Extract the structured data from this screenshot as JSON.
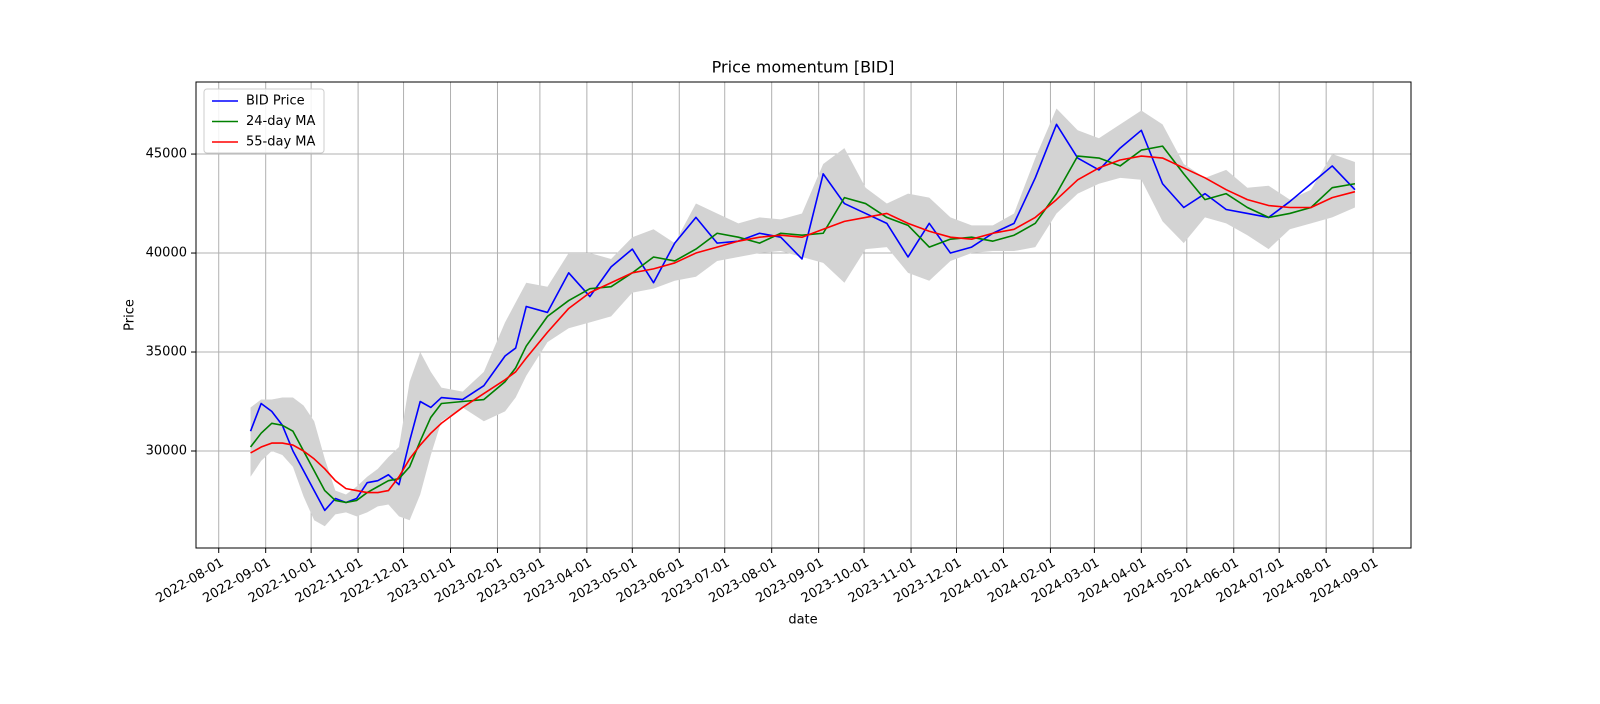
{
  "chart_data": {
    "type": "line",
    "title": "Price momentum [BID]",
    "xlabel": "date",
    "ylabel": "Price",
    "x": [
      "2022-08-22",
      "2022-08-29",
      "2022-09-05",
      "2022-09-12",
      "2022-09-19",
      "2022-09-26",
      "2022-10-03",
      "2022-10-10",
      "2022-10-17",
      "2022-10-24",
      "2022-10-31",
      "2022-11-07",
      "2022-11-14",
      "2022-11-21",
      "2022-11-28",
      "2022-12-05",
      "2022-12-12",
      "2022-12-19",
      "2022-12-26",
      "2023-01-09",
      "2023-01-23",
      "2023-02-06",
      "2023-02-13",
      "2023-02-20",
      "2023-03-06",
      "2023-03-20",
      "2023-04-03",
      "2023-04-17",
      "2023-05-01",
      "2023-05-15",
      "2023-05-29",
      "2023-06-12",
      "2023-06-26",
      "2023-07-10",
      "2023-07-24",
      "2023-08-07",
      "2023-08-21",
      "2023-09-04",
      "2023-09-18",
      "2023-10-02",
      "2023-10-16",
      "2023-10-30",
      "2023-11-13",
      "2023-11-27",
      "2023-12-11",
      "2023-12-25",
      "2024-01-08",
      "2024-01-22",
      "2024-02-05",
      "2024-02-19",
      "2024-03-04",
      "2024-03-18",
      "2024-04-01",
      "2024-04-15",
      "2024-04-29",
      "2024-05-13",
      "2024-05-27",
      "2024-06-10",
      "2024-06-24",
      "2024-07-08",
      "2024-07-22",
      "2024-08-05",
      "2024-08-20"
    ],
    "series": [
      {
        "name": "BID Price",
        "color": "blue",
        "values": [
          31000,
          32400,
          32000,
          31300,
          30000,
          29000,
          28000,
          27000,
          27600,
          27400,
          27600,
          28400,
          28500,
          28800,
          28300,
          30500,
          32500,
          32200,
          32700,
          32600,
          33300,
          34800,
          35200,
          37300,
          37000,
          39000,
          37800,
          39300,
          40200,
          38500,
          40500,
          41800,
          40500,
          40600,
          41000,
          40800,
          39700,
          44000,
          42500,
          42000,
          41500,
          39800,
          41500,
          40000,
          40300,
          41000,
          41500,
          43800,
          46500,
          44800,
          44200,
          45300,
          46200,
          43500,
          42300,
          43000,
          42200,
          42000,
          41800,
          42600,
          43500,
          44400,
          43200
        ]
      },
      {
        "name": "24-day MA",
        "color": "green",
        "values": [
          30200,
          30900,
          31400,
          31300,
          31000,
          30000,
          29000,
          28000,
          27500,
          27400,
          27500,
          27900,
          28200,
          28500,
          28600,
          29200,
          30500,
          31700,
          32400,
          32500,
          32600,
          33500,
          34200,
          35300,
          36800,
          37600,
          38200,
          38300,
          39000,
          39800,
          39600,
          40200,
          41000,
          40800,
          40500,
          41000,
          40900,
          41000,
          42800,
          42500,
          41800,
          41400,
          40300,
          40700,
          40800,
          40600,
          40900,
          41500,
          43000,
          44900,
          44800,
          44400,
          45200,
          45400,
          44000,
          42700,
          43000,
          42300,
          41800,
          42000,
          42300,
          43300,
          43500
        ]
      },
      {
        "name": "55-day MA",
        "color": "red",
        "values": [
          29900,
          30200,
          30400,
          30400,
          30300,
          30000,
          29600,
          29100,
          28500,
          28100,
          28000,
          27900,
          27900,
          28000,
          28700,
          29600,
          30300,
          30900,
          31400,
          32200,
          32900,
          33600,
          34000,
          34700,
          36000,
          37200,
          38000,
          38500,
          39000,
          39200,
          39500,
          40000,
          40300,
          40600,
          40800,
          40900,
          40800,
          41200,
          41600,
          41800,
          42000,
          41500,
          41100,
          40800,
          40700,
          41000,
          41200,
          41800,
          42700,
          43700,
          44300,
          44700,
          44900,
          44800,
          44300,
          43800,
          43200,
          42700,
          42400,
          42300,
          42300,
          42800,
          43100
        ]
      }
    ],
    "band": {
      "color": "#d3d3d3",
      "upper": [
        32200,
        32600,
        32600,
        32700,
        32700,
        32300,
        31500,
        29600,
        28000,
        27800,
        28200,
        28700,
        29100,
        29700,
        30200,
        33500,
        35000,
        34000,
        33200,
        33000,
        34000,
        36500,
        37500,
        38500,
        38300,
        40000,
        40000,
        39700,
        40800,
        41200,
        40500,
        42500,
        42000,
        41500,
        41800,
        41700,
        42000,
        44500,
        45300,
        43300,
        42500,
        43000,
        42800,
        41800,
        41400,
        41400,
        42000,
        44800,
        47300,
        46200,
        45800,
        46500,
        47200,
        46500,
        44500,
        43800,
        44200,
        43300,
        43400,
        42700,
        43200,
        45000,
        44600
      ],
      "lower": [
        28700,
        29500,
        30000,
        29800,
        29200,
        27700,
        26500,
        26200,
        26800,
        26900,
        26700,
        26900,
        27200,
        27300,
        26700,
        26500,
        27800,
        29800,
        31500,
        32200,
        31500,
        32000,
        32700,
        33800,
        35500,
        36200,
        36500,
        36800,
        38000,
        38200,
        38600,
        38800,
        39600,
        39800,
        40000,
        40100,
        39800,
        39500,
        38500,
        40200,
        40300,
        39000,
        38600,
        39600,
        40000,
        40100,
        40100,
        40300,
        42000,
        43000,
        43500,
        43800,
        43700,
        41600,
        40500,
        41800,
        41500,
        40900,
        40200,
        41200,
        41500,
        41800,
        42300
      ]
    },
    "xlim": [
      "2022-07-17",
      "2024-09-26"
    ],
    "xticks": [
      "2022-08-01",
      "2022-09-01",
      "2022-10-01",
      "2022-11-01",
      "2022-12-01",
      "2023-01-01",
      "2023-02-01",
      "2023-03-01",
      "2023-04-01",
      "2023-05-01",
      "2023-06-01",
      "2023-07-01",
      "2023-08-01",
      "2023-09-01",
      "2023-10-01",
      "2023-11-01",
      "2023-12-01",
      "2024-01-01",
      "2024-02-01",
      "2024-03-01",
      "2024-04-01",
      "2024-05-01",
      "2024-06-01",
      "2024-07-01",
      "2024-08-01",
      "2024-09-01"
    ],
    "ylim": [
      25100,
      48640
    ],
    "yticks": [
      30000,
      35000,
      40000,
      45000
    ],
    "grid": true,
    "legend": "upper left"
  }
}
